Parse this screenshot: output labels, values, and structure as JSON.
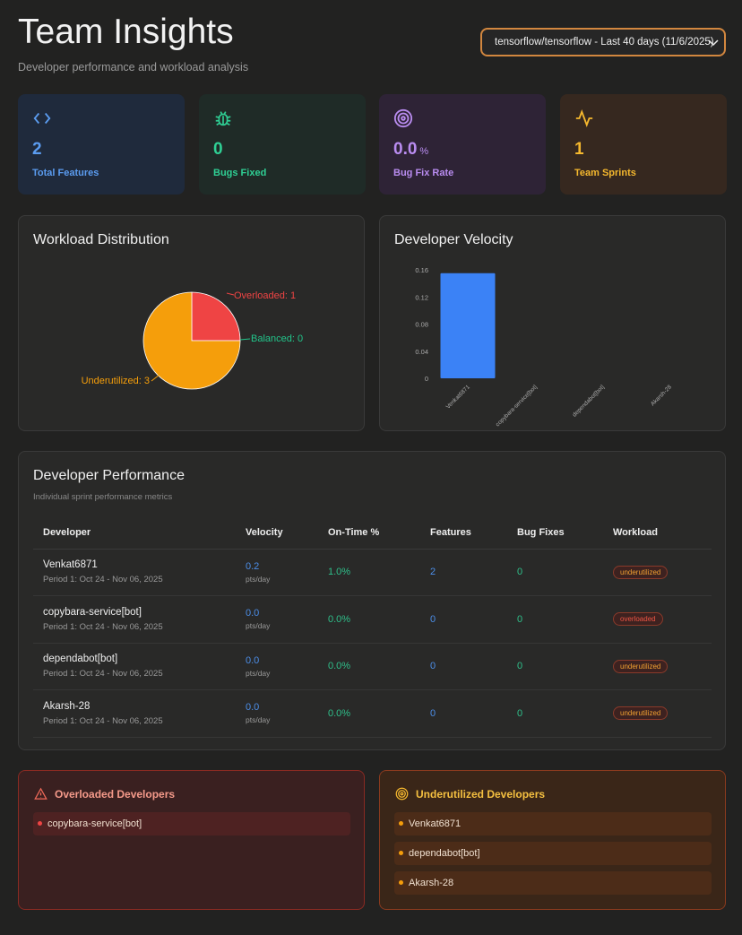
{
  "header": {
    "title": "Team Insights",
    "subtitle": "Developer performance and workload analysis",
    "repo_select": "tensorflow/tensorflow - Last 40 days (11/6/2025)"
  },
  "stats": [
    {
      "icon": "code-icon",
      "value": "2",
      "label": "Total Features",
      "color": "#5b9cf0"
    },
    {
      "icon": "bug-icon",
      "value": "0",
      "label": "Bugs Fixed",
      "color": "#2fcf94"
    },
    {
      "icon": "target-icon",
      "value": "0.0",
      "unit": "%",
      "label": "Bug Fix Rate",
      "color": "#b98cf0"
    },
    {
      "icon": "activity-icon",
      "value": "1",
      "label": "Team Sprints",
      "color": "#f5b82e"
    }
  ],
  "workload": {
    "title": "Workload Distribution",
    "chart_data": {
      "type": "pie",
      "slices": [
        {
          "label": "Overloaded",
          "value": 1,
          "color": "#ef4444",
          "text": "Overloaded: 1"
        },
        {
          "label": "Balanced",
          "value": 0,
          "color": "#22c58b",
          "text": "Balanced: 0"
        },
        {
          "label": "Underutilized",
          "value": 3,
          "color": "#f59e0b",
          "text": "Underutilized: 3"
        }
      ]
    }
  },
  "velocity": {
    "title": "Developer Velocity",
    "chart_data": {
      "type": "bar",
      "categories": [
        "Venkat6871",
        "copybara-service[bot]",
        "dependabot[bot]",
        "Akarsh-28"
      ],
      "values": [
        0.155,
        0,
        0,
        0
      ],
      "ylim": [
        0,
        0.16
      ],
      "yticks": [
        "0",
        "0.04",
        "0.08",
        "0.12",
        "0.16"
      ],
      "color": "#3b82f6"
    }
  },
  "performance": {
    "title": "Developer Performance",
    "subtitle": "Individual sprint performance metrics",
    "columns": [
      "Developer",
      "Velocity",
      "On-Time %",
      "Features",
      "Bug Fixes",
      "Workload"
    ],
    "velocity_unit": "pts/day",
    "rows": [
      {
        "name": "Venkat6871",
        "period": "Period 1: Oct 24 - Nov 06, 2025",
        "velocity": "0.2",
        "on_time": "1.0%",
        "features": "2",
        "bug_fixes": "0",
        "workload": "underutilized"
      },
      {
        "name": "copybara-service[bot]",
        "period": "Period 1: Oct 24 - Nov 06, 2025",
        "velocity": "0.0",
        "on_time": "0.0%",
        "features": "0",
        "bug_fixes": "0",
        "workload": "overloaded"
      },
      {
        "name": "dependabot[bot]",
        "period": "Period 1: Oct 24 - Nov 06, 2025",
        "velocity": "0.0",
        "on_time": "0.0%",
        "features": "0",
        "bug_fixes": "0",
        "workload": "underutilized"
      },
      {
        "name": "Akarsh-28",
        "period": "Period 1: Oct 24 - Nov 06, 2025",
        "velocity": "0.0",
        "on_time": "0.0%",
        "features": "0",
        "bug_fixes": "0",
        "workload": "underutilized"
      }
    ]
  },
  "overloaded": {
    "title": "Overloaded Developers",
    "items": [
      "copybara-service[bot]"
    ]
  },
  "underutilized": {
    "title": "Underutilized Developers",
    "items": [
      "Venkat6871",
      "dependabot[bot]",
      "Akarsh-28"
    ]
  }
}
